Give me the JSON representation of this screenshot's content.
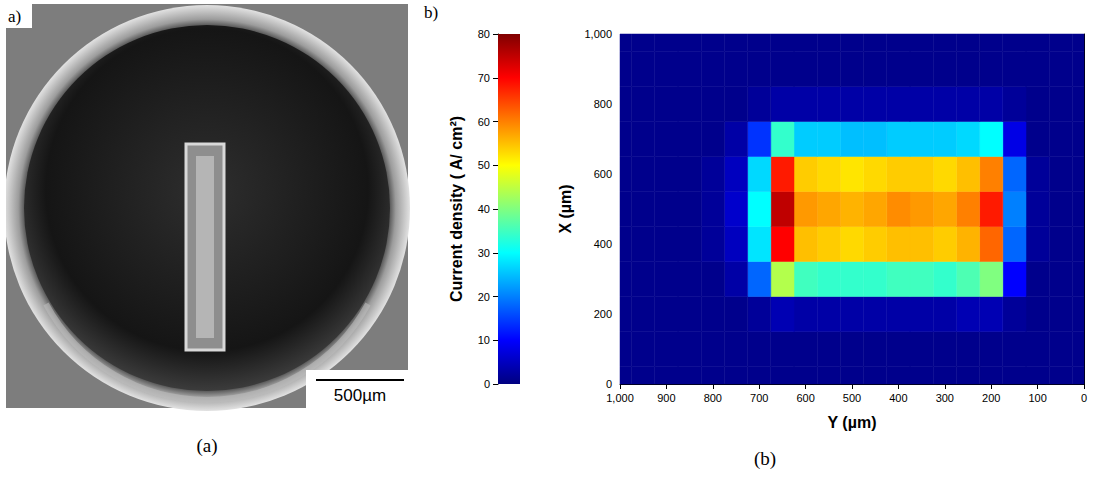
{
  "photo": {
    "letter": "a)",
    "caption": "(a)",
    "scale_bar": "500µm"
  },
  "chart_data": {
    "type": "heatmap",
    "letter": "b)",
    "caption": "(b)",
    "x_label": "Y (µm)",
    "y_label": "X (µm)",
    "x": [
      0,
      50,
      100,
      150,
      200,
      250,
      300,
      350,
      400,
      450,
      500,
      550,
      600,
      650,
      700,
      750,
      800,
      850,
      900,
      950,
      1000
    ],
    "y": [
      0,
      100,
      200,
      300,
      400,
      500,
      600,
      700,
      800,
      900,
      1000
    ],
    "cells": [
      [
        1,
        1,
        1,
        1,
        1,
        1,
        1,
        1,
        1,
        1,
        1,
        1,
        1,
        1,
        1,
        1,
        1,
        1,
        1,
        1,
        1
      ],
      [
        1,
        1,
        1,
        1,
        1,
        1,
        1,
        1,
        1,
        1,
        1,
        1,
        1,
        1,
        1,
        1,
        1,
        1,
        1,
        1,
        1
      ],
      [
        1,
        1,
        1,
        2,
        4,
        4,
        3,
        3,
        3,
        3,
        3,
        3,
        3,
        4,
        2,
        1,
        1,
        1,
        1,
        1,
        1
      ],
      [
        1,
        1,
        1,
        10,
        40,
        36,
        34,
        35,
        35,
        34,
        34,
        34,
        35,
        44,
        18,
        3,
        1,
        1,
        1,
        1,
        1
      ],
      [
        1,
        1,
        2,
        18,
        62,
        56,
        54,
        55,
        55,
        54,
        53,
        54,
        55,
        70,
        28,
        5,
        2,
        1,
        1,
        1,
        1
      ],
      [
        1,
        1,
        2,
        20,
        68,
        60,
        57,
        58,
        59,
        57,
        56,
        57,
        58,
        75,
        30,
        6,
        2,
        1,
        1,
        1,
        1
      ],
      [
        1,
        1,
        2,
        18,
        60,
        55,
        53,
        54,
        54,
        53,
        52,
        53,
        54,
        68,
        27,
        5,
        2,
        1,
        1,
        1,
        1
      ],
      [
        1,
        1,
        1,
        8,
        30,
        27,
        26,
        26,
        26,
        25,
        25,
        26,
        26,
        34,
        14,
        3,
        1,
        1,
        1,
        1,
        1
      ],
      [
        1,
        1,
        1,
        2,
        3,
        3,
        3,
        3,
        3,
        3,
        3,
        3,
        3,
        3,
        2,
        1,
        1,
        1,
        1,
        1,
        1
      ],
      [
        1,
        1,
        1,
        1,
        1,
        1,
        1,
        1,
        1,
        1,
        1,
        1,
        1,
        1,
        1,
        1,
        1,
        1,
        1,
        1,
        1
      ],
      [
        1,
        1,
        1,
        1,
        1,
        1,
        1,
        1,
        1,
        1,
        1,
        1,
        1,
        1,
        1,
        1,
        1,
        1,
        1,
        1,
        1
      ]
    ],
    "xlim": [
      0,
      1000
    ],
    "xticks": [
      0,
      100,
      200,
      300,
      400,
      500,
      600,
      700,
      800,
      900,
      1000
    ],
    "ylim": [
      0,
      1000
    ],
    "yticks": [
      0,
      200,
      400,
      600,
      800,
      1000
    ],
    "colorbar": {
      "label": "Current density ( A/ cm²)",
      "range": [
        0,
        80
      ],
      "ticks": [
        0,
        10,
        20,
        30,
        40,
        50,
        60,
        70,
        80
      ]
    }
  }
}
